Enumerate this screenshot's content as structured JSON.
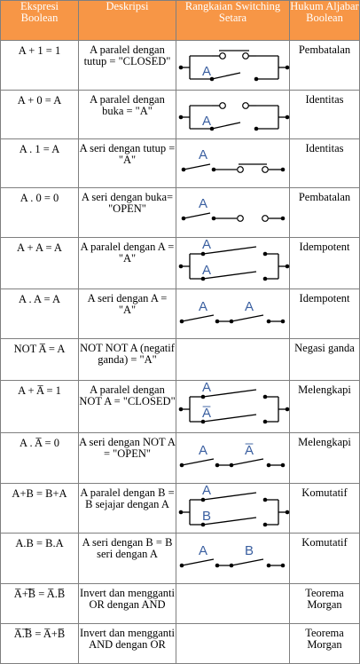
{
  "headers": {
    "expr": "Ekspresi Boolean",
    "desc": "Deskripsi",
    "circuit": "Rangkaian Switching Setara",
    "law": "Hukum Aljabar Boolean"
  },
  "rows": [
    {
      "expr": "A + 1 = 1",
      "desc": "A paralel dengan tutup = \"CLOSED\"",
      "law": "Pembatalan",
      "circuit_labels": [
        "A"
      ],
      "circuit": "parallel-closed"
    },
    {
      "expr": "A + 0 = A",
      "desc": "A paralel dengan buka = \"A\"",
      "law": "Identitas",
      "circuit_labels": [
        "A"
      ],
      "circuit": "parallel-open"
    },
    {
      "expr": "A . 1 = A",
      "desc": "A seri dengan tutup = \"A\"",
      "law": "Identitas",
      "circuit_labels": [
        "A"
      ],
      "circuit": "series-closed"
    },
    {
      "expr": "A . 0 = 0",
      "desc": "A seri dengan buka= \"OPEN\"",
      "law": "Pembatalan",
      "circuit_labels": [
        "A"
      ],
      "circuit": "series-open"
    },
    {
      "expr": "A + A = A",
      "desc": "A paralel dengan A = \"A\"",
      "law": "Idempotent",
      "circuit_labels": [
        "A",
        "A"
      ],
      "circuit": "parallel-two"
    },
    {
      "expr": "A . A = A",
      "desc": "A seri dengan A = \"A\"",
      "law": "Idempotent",
      "circuit_labels": [
        "A",
        "A"
      ],
      "circuit": "series-two"
    },
    {
      "expr": "NOT A̅ = A",
      "desc": "NOT NOT A (negatif ganda) = \"A\"",
      "law": "Negasi ganda",
      "circuit_labels": [],
      "circuit": "none"
    },
    {
      "expr": "A + A̅ = 1",
      "desc": "A paralel dengan NOT A = \"CLOSED\"",
      "law": "Melengkapi",
      "circuit_labels": [
        "A",
        "A̅"
      ],
      "circuit": "parallel-two"
    },
    {
      "expr": "A . A̅ = 0",
      "desc": "A seri dengan NOT A = \"OPEN\"",
      "law": "Melengkapi",
      "circuit_labels": [
        "A",
        "A̅"
      ],
      "circuit": "series-two"
    },
    {
      "expr": "A+B = B+A",
      "desc": "A paralel dengan B = B sejajar dengan A",
      "law": "Komutatif",
      "circuit_labels": [
        "A",
        "B"
      ],
      "circuit": "parallel-two"
    },
    {
      "expr": "A.B = B.A",
      "desc": "A seri dengan B = B seri dengan A",
      "law": "Komutatif",
      "circuit_labels": [
        "A",
        "B"
      ],
      "circuit": "series-two"
    },
    {
      "expr": "A̅+̅B̅ = A̅.B̅",
      "desc": "Invert dan mengganti OR dengan AND",
      "law": "Teorema Morgan",
      "circuit_labels": [],
      "circuit": "none"
    },
    {
      "expr": "A̅.̅B̅ = A̅+B̅",
      "desc": "Invert dan mengganti AND dengan OR",
      "law": "Teorema Morgan",
      "circuit_labels": [],
      "circuit": "none"
    }
  ]
}
